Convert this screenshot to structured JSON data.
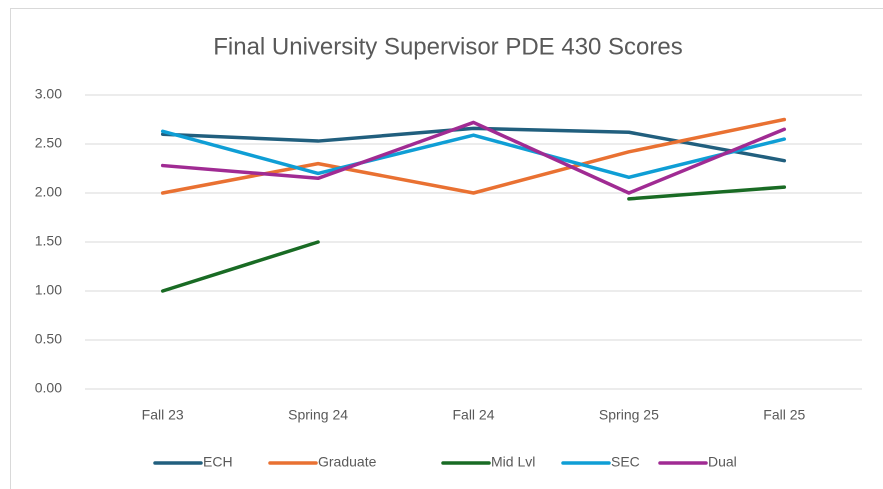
{
  "chart_data": {
    "type": "line",
    "title": "Final University Supervisor PDE 430 Scores",
    "categories": [
      "Fall 23",
      "Spring 24",
      "Fall 24",
      "Spring 25",
      "Fall 25"
    ],
    "series": [
      {
        "name": "ECH",
        "color": "#215f7e",
        "values": [
          2.6,
          2.53,
          2.66,
          2.62,
          2.33
        ]
      },
      {
        "name": "Graduate",
        "color": "#e97132",
        "values": [
          2.0,
          2.3,
          2.0,
          2.42,
          2.75
        ]
      },
      {
        "name": "Mid Lvl",
        "color": "#196b24",
        "values": [
          1.0,
          1.5,
          null,
          1.94,
          2.06
        ]
      },
      {
        "name": "SEC",
        "color": "#0f9ed5",
        "values": [
          2.63,
          2.2,
          2.59,
          2.16,
          2.55
        ]
      },
      {
        "name": "Dual",
        "color": "#a02b93",
        "values": [
          2.28,
          2.15,
          2.72,
          2.0,
          2.65
        ]
      }
    ],
    "ylim": [
      0,
      3
    ],
    "yticks": [
      {
        "value": 0,
        "label": "0.00"
      },
      {
        "value": 0.5,
        "label": "0.50"
      },
      {
        "value": 1,
        "label": "1.00"
      },
      {
        "value": 1.5,
        "label": "1.50"
      },
      {
        "value": 2,
        "label": "2.00"
      },
      {
        "value": 2.5,
        "label": "2.50"
      },
      {
        "value": 3,
        "label": "3.00"
      }
    ],
    "grid": true,
    "legend": "bottom"
  }
}
